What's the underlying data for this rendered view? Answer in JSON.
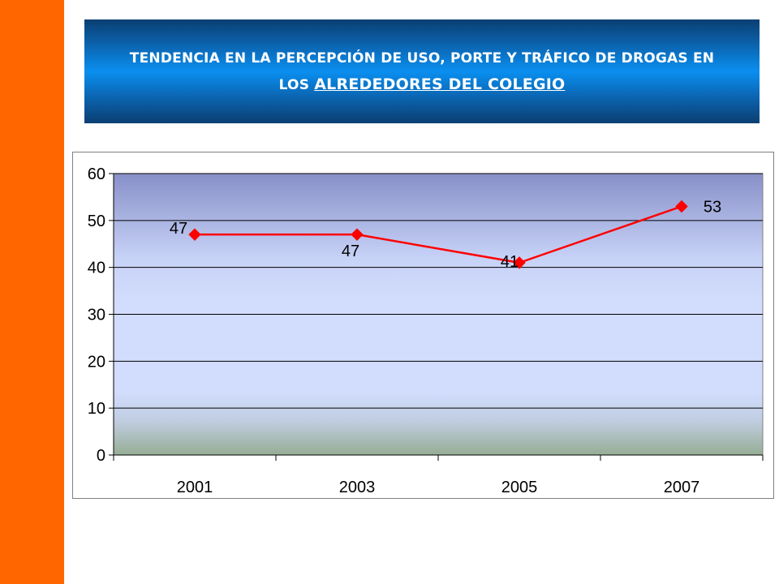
{
  "slide": {
    "title_part1": "TENDENCIA EN LA PERCEPCIÓN DE USO, PORTE Y TRÁFICO DE DROGAS EN LOS",
    "title_part2": "ALREDEDORES DEL COLEGIO"
  },
  "colors": {
    "side_bar": "#ff6600",
    "series_line": "#ff0000",
    "title_text": "#ffffff"
  },
  "chart_data": {
    "type": "line",
    "categories": [
      "2001",
      "2003",
      "2005",
      "2007"
    ],
    "series": [
      {
        "values": [
          47,
          47,
          41,
          53
        ]
      }
    ],
    "data_labels": [
      "47",
      "47",
      "41",
      "53"
    ],
    "ylim": [
      0,
      60
    ],
    "yticks": [
      0,
      10,
      20,
      30,
      40,
      50,
      60
    ],
    "grid": true,
    "legend": "none",
    "marker": "diamond"
  }
}
